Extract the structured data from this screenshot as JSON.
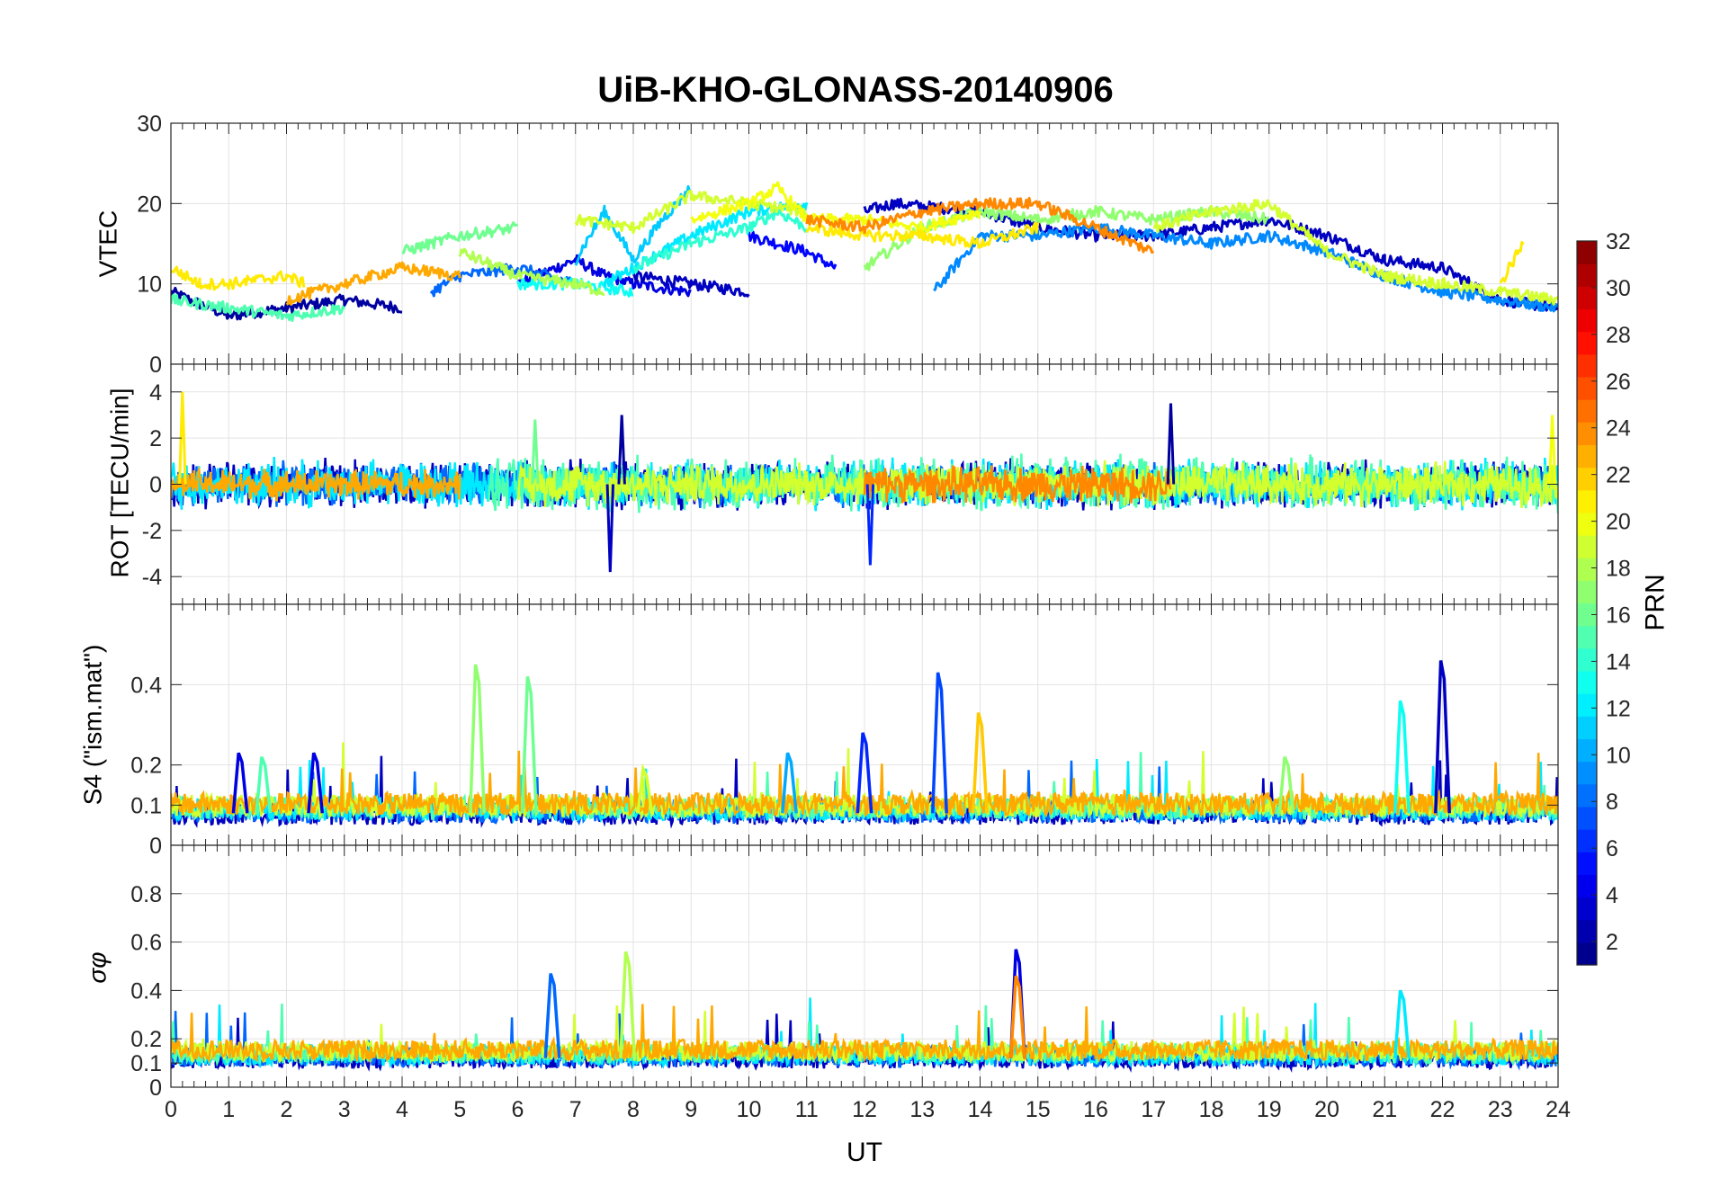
{
  "title": "UiB-KHO-GLONASS-20140906",
  "xlabel": "UT",
  "x_ticks": [
    "0",
    "1",
    "2",
    "3",
    "4",
    "5",
    "6",
    "7",
    "8",
    "9",
    "10",
    "11",
    "12",
    "13",
    "14",
    "15",
    "16",
    "17",
    "18",
    "19",
    "20",
    "21",
    "22",
    "23",
    "24"
  ],
  "colors": {
    "axis": "#262626",
    "grid": "#e3e3e3",
    "background": "#ffffff"
  },
  "panels": [
    {
      "name": "vtec",
      "ylabel": "VTEC",
      "ylim": [
        0,
        30
      ],
      "yticks": [
        0,
        10,
        20,
        30
      ]
    },
    {
      "name": "rot",
      "ylabel": "ROT [TECU/min]",
      "ylim": [
        -5.2,
        5.2
      ],
      "yticks": [
        -4,
        -2,
        0,
        2,
        4
      ]
    },
    {
      "name": "s4",
      "ylabel": "S4 (\"ism.mat\")",
      "ylim": [
        0,
        0.6
      ],
      "yticks": [
        0.1,
        0.2,
        0.4
      ],
      "extra_tick": "0"
    },
    {
      "name": "sigma",
      "ylabel": "σφ",
      "ylim": [
        0,
        1
      ],
      "yticks": [
        0,
        0.1,
        0.2,
        0.4,
        0.6,
        0.8
      ]
    }
  ],
  "colorbar": {
    "label": "PRN",
    "range": [
      1,
      32
    ],
    "ticks": [
      2,
      4,
      6,
      8,
      10,
      12,
      14,
      16,
      18,
      20,
      22,
      24,
      26,
      28,
      30,
      32
    ],
    "colormap": "jet"
  },
  "chart_data": {
    "type": "line",
    "title": "UiB-KHO-GLONASS-20140906",
    "xlabel": "UT",
    "xlim": [
      0,
      24
    ],
    "subplots": [
      {
        "ylabel": "VTEC",
        "ylim": [
          0,
          30
        ],
        "series": [
          {
            "prn": 2,
            "x": [
              0,
              1,
              2,
              3,
              4
            ],
            "y": [
              9,
              6,
              7,
              8,
              7
            ]
          },
          {
            "prn": 4,
            "x": [
              6,
              7,
              7.5,
              8,
              9
            ],
            "y": [
              10,
              13,
              11,
              10,
              9
            ]
          },
          {
            "prn": 3,
            "x": [
              8,
              9,
              10
            ],
            "y": [
              11,
              10,
              9
            ]
          },
          {
            "prn": 5,
            "x": [
              10,
              11,
              11.5
            ],
            "y": [
              16,
              14,
              12
            ]
          },
          {
            "prn": 3,
            "x": [
              12,
              12.5,
              14,
              15,
              16,
              17,
              18,
              19,
              20,
              21,
              22,
              23,
              24
            ],
            "y": [
              19,
              20,
              19,
              17,
              16,
              16,
              17,
              18,
              16,
              13,
              12,
              8,
              7
            ]
          },
          {
            "prn": 9,
            "x": [
              13.2,
              14,
              15,
              16,
              17,
              18,
              19,
              20,
              21,
              22,
              23,
              24
            ],
            "y": [
              9,
              16,
              16,
              17,
              16,
              15,
              16,
              14,
              11,
              9,
              8,
              7
            ]
          },
          {
            "prn": 8,
            "x": [
              4.5,
              5,
              6,
              7
            ],
            "y": [
              9,
              11,
              12,
              10
            ]
          },
          {
            "prn": 11,
            "x": [
              7,
              7.5,
              8,
              8.5,
              9
            ],
            "y": [
              13,
              19,
              13,
              18,
              22
            ]
          },
          {
            "prn": 13,
            "x": [
              6,
              7,
              8
            ],
            "y": [
              10,
              10,
              9
            ]
          },
          {
            "prn": 12,
            "x": [
              7.5,
              8,
              9,
              10,
              11
            ],
            "y": [
              10,
              12,
              16,
              19,
              20
            ]
          },
          {
            "prn": 14,
            "x": [
              8,
              9,
              10,
              10.5,
              11
            ],
            "y": [
              12,
              15,
              17,
              19,
              17
            ]
          },
          {
            "prn": 15,
            "x": [
              0,
              1,
              2,
              3
            ],
            "y": [
              8,
              7,
              6,
              7
            ]
          },
          {
            "prn": 16,
            "x": [
              4,
              5,
              6
            ],
            "y": [
              14,
              16,
              17
            ]
          },
          {
            "prn": 17,
            "x": [
              12,
              13,
              14,
              15,
              16,
              17,
              18,
              19
            ],
            "y": [
              12,
              17,
              19,
              18,
              19,
              18,
              19,
              18
            ]
          },
          {
            "prn": 18,
            "x": [
              5,
              6,
              7,
              7.5
            ],
            "y": [
              14,
              11,
              10,
              9
            ]
          },
          {
            "prn": 19,
            "x": [
              7,
              8,
              9,
              10,
              11
            ],
            "y": [
              18,
              17,
              21,
              20,
              19
            ]
          },
          {
            "prn": 20,
            "x": [
              9,
              10,
              10.5,
              11,
              12,
              13,
              14
            ],
            "y": [
              18,
              20,
              22,
              18,
              18,
              17,
              19
            ]
          },
          {
            "prn": 19,
            "x": [
              17,
              18,
              19,
              20,
              21,
              22,
              23,
              24
            ],
            "y": [
              17,
              19,
              20,
              14,
              11,
              10,
              9,
              8
            ]
          },
          {
            "prn": 21,
            "x": [
              0,
              0.5,
              1,
              2,
              2.3
            ],
            "y": [
              12,
              10,
              10,
              11,
              10
            ]
          },
          {
            "prn": 21,
            "x": [
              11,
              12,
              13,
              14,
              15
            ],
            "y": [
              17,
              16,
              16,
              15,
              17
            ]
          },
          {
            "prn": 21,
            "x": [
              23,
              23.4
            ],
            "y": [
              10,
              15
            ]
          },
          {
            "prn": 23,
            "x": [
              2,
              3,
              4,
              5
            ],
            "y": [
              8,
              10,
              12,
              11
            ]
          },
          {
            "prn": 24,
            "x": [
              11,
              12,
              13,
              14,
              15,
              16,
              17
            ],
            "y": [
              18,
              17,
              19,
              20,
              20,
              17,
              14
            ]
          }
        ]
      },
      {
        "ylabel": "ROT [TECU/min]",
        "ylim": [
          -5.2,
          5.2
        ],
        "bands": [
          {
            "prn": 3,
            "x0": 0,
            "x1": 24,
            "amp": 0.8
          },
          {
            "prn": 8,
            "x0": 0,
            "x1": 24,
            "amp": 0.7
          },
          {
            "prn": 12,
            "x0": 0,
            "x1": 24,
            "amp": 0.8
          },
          {
            "prn": 15,
            "x0": 5.5,
            "x1": 24,
            "amp": 0.9
          },
          {
            "prn": 19,
            "x0": 6,
            "x1": 24,
            "amp": 0.7
          },
          {
            "prn": 23,
            "x0": 0,
            "x1": 5,
            "amp": 0.5
          },
          {
            "prn": 24,
            "x0": 12,
            "x1": 17.3,
            "amp": 0.6
          }
        ],
        "spikes": [
          {
            "prn": 21,
            "x": 0.2,
            "y": 4
          },
          {
            "prn": 3,
            "x": 7.6,
            "y": -3.8
          },
          {
            "prn": 2,
            "x": 7.8,
            "y": 3
          },
          {
            "prn": 6,
            "x": 12.1,
            "y": -3.5
          },
          {
            "prn": 2,
            "x": 17.3,
            "y": 3.5
          },
          {
            "prn": 16,
            "x": 6.3,
            "y": 2.8
          },
          {
            "prn": 20,
            "x": 23.9,
            "y": 3
          }
        ]
      },
      {
        "ylabel": "S4 (\"ism.mat\")",
        "ylim": [
          0,
          0.6
        ],
        "baseline": 0.08,
        "peaks": [
          {
            "prn": 4,
            "x": 1.2,
            "y": 0.23
          },
          {
            "prn": 15,
            "x": 1.6,
            "y": 0.22
          },
          {
            "prn": 4,
            "x": 2.5,
            "y": 0.23
          },
          {
            "prn": 17,
            "x": 5.3,
            "y": 0.45
          },
          {
            "prn": 16,
            "x": 6.2,
            "y": 0.42
          },
          {
            "prn": 19,
            "x": 8.2,
            "y": 0.19
          },
          {
            "prn": 10,
            "x": 10.7,
            "y": 0.23
          },
          {
            "prn": 6,
            "x": 12,
            "y": 0.28
          },
          {
            "prn": 7,
            "x": 13.3,
            "y": 0.43
          },
          {
            "prn": 22,
            "x": 14,
            "y": 0.33
          },
          {
            "prn": 17,
            "x": 19.3,
            "y": 0.22
          },
          {
            "prn": 13,
            "x": 21.3,
            "y": 0.36
          },
          {
            "prn": 3,
            "x": 22,
            "y": 0.46
          }
        ]
      },
      {
        "ylabel": "σφ",
        "ylim": [
          0,
          1
        ],
        "baseline": 0.12,
        "peaks": [
          {
            "prn": 8,
            "x": 6.6,
            "y": 0.47
          },
          {
            "prn": 18,
            "x": 7.9,
            "y": 0.56
          },
          {
            "prn": 4,
            "x": 14.65,
            "y": 0.57
          },
          {
            "prn": 24,
            "x": 14.65,
            "y": 0.46
          },
          {
            "prn": 12,
            "x": 21.3,
            "y": 0.4
          }
        ]
      }
    ]
  }
}
